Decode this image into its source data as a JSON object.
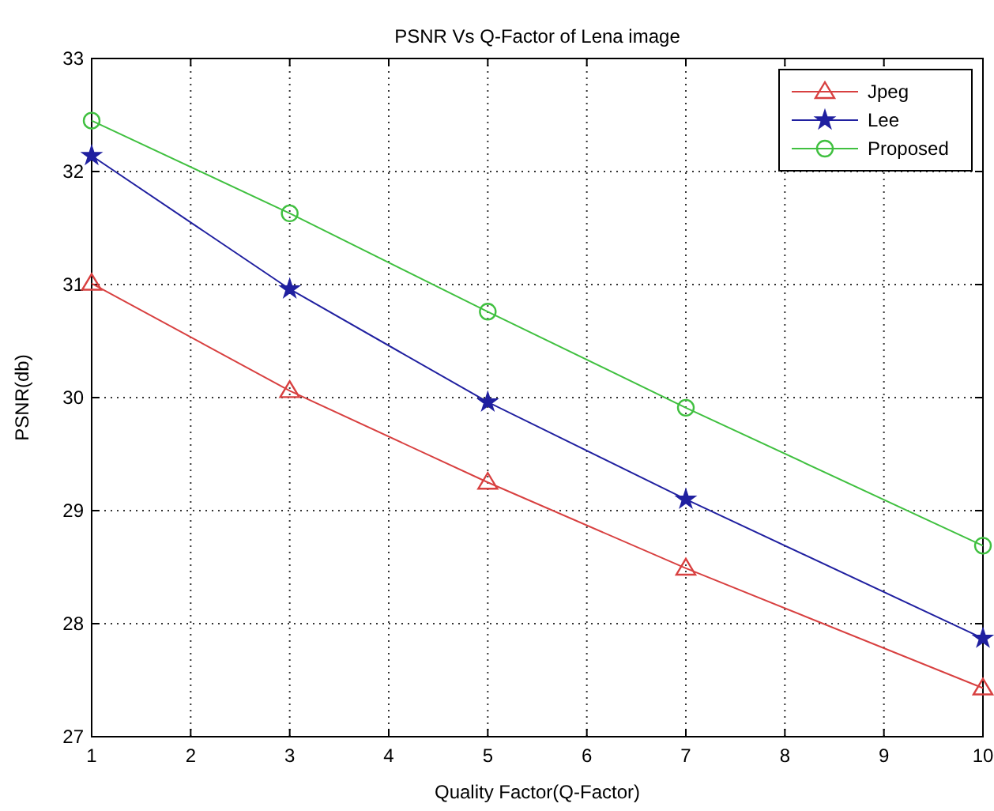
{
  "chart_data": {
    "type": "line",
    "title": "PSNR Vs Q-Factor of Lena image",
    "xlabel": "Quality Factor(Q-Factor)",
    "ylabel": "PSNR(db)",
    "x": [
      1,
      3,
      5,
      7,
      10
    ],
    "series": [
      {
        "name": "Jpeg",
        "color": "#d84040",
        "marker": "triangle",
        "values": [
          31.01,
          30.06,
          29.25,
          28.49,
          27.43
        ]
      },
      {
        "name": "Lee",
        "color": "#2020a0",
        "marker": "star",
        "values": [
          32.14,
          30.96,
          29.96,
          29.1,
          27.87
        ]
      },
      {
        "name": "Proposed",
        "color": "#40c040",
        "marker": "circle",
        "values": [
          32.45,
          31.63,
          30.76,
          29.91,
          28.69
        ]
      }
    ],
    "xlim": [
      1,
      10
    ],
    "xticks": [
      1,
      2,
      3,
      4,
      5,
      6,
      7,
      8,
      9,
      10
    ],
    "ylim": [
      27,
      33
    ],
    "yticks": [
      27,
      28,
      29,
      30,
      31,
      32,
      33
    ],
    "grid": true,
    "legend": "top right",
    "line_style": "solid"
  }
}
